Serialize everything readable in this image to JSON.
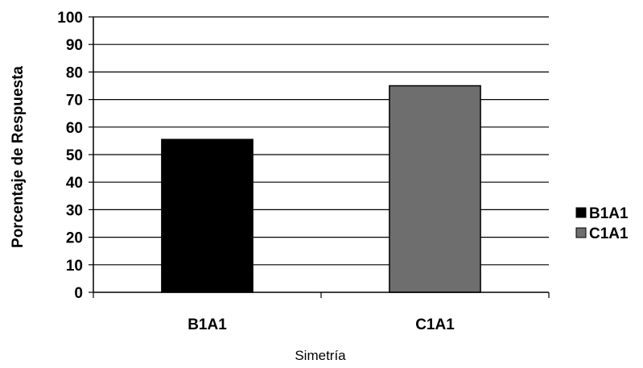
{
  "chart_data": {
    "type": "bar",
    "categories": [
      "B1A1",
      "C1A1"
    ],
    "values": [
      55.5,
      75
    ],
    "title": "",
    "xlabel": "Simetría",
    "ylabel": "Porcentaje de Respuesta",
    "ylim": [
      0,
      100
    ],
    "ytick_step": 10,
    "grid": true,
    "legend": {
      "placement": "right",
      "entries": [
        {
          "label": "B1A1",
          "color": "#000000"
        },
        {
          "label": "C1A1",
          "color": "#6e6e6e"
        }
      ]
    },
    "colors": [
      "#000000",
      "#6e6e6e"
    ]
  }
}
